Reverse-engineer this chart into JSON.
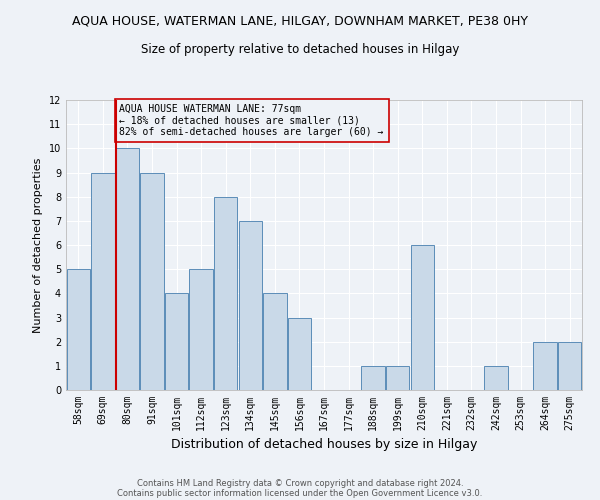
{
  "title": "AQUA HOUSE, WATERMAN LANE, HILGAY, DOWNHAM MARKET, PE38 0HY",
  "subtitle": "Size of property relative to detached houses in Hilgay",
  "xlabel": "Distribution of detached houses by size in Hilgay",
  "ylabel": "Number of detached properties",
  "categories": [
    "58sqm",
    "69sqm",
    "80sqm",
    "91sqm",
    "101sqm",
    "112sqm",
    "123sqm",
    "134sqm",
    "145sqm",
    "156sqm",
    "167sqm",
    "177sqm",
    "188sqm",
    "199sqm",
    "210sqm",
    "221sqm",
    "232sqm",
    "242sqm",
    "253sqm",
    "264sqm",
    "275sqm"
  ],
  "values": [
    5,
    9,
    10,
    9,
    4,
    5,
    8,
    7,
    4,
    3,
    0,
    0,
    1,
    1,
    6,
    0,
    0,
    1,
    0,
    2,
    2
  ],
  "bar_color": "#c9d9e8",
  "bar_edge_color": "#5b8db8",
  "highlight_index": 2,
  "highlight_line_color": "#cc0000",
  "ylim": [
    0,
    12
  ],
  "yticks": [
    0,
    1,
    2,
    3,
    4,
    5,
    6,
    7,
    8,
    9,
    10,
    11,
    12
  ],
  "annotation_text": "AQUA HOUSE WATERMAN LANE: 77sqm\n← 18% of detached houses are smaller (13)\n82% of semi-detached houses are larger (60) →",
  "annotation_box_edge": "#cc0000",
  "footer1": "Contains HM Land Registry data © Crown copyright and database right 2024.",
  "footer2": "Contains public sector information licensed under the Open Government Licence v3.0.",
  "bg_color": "#eef2f7",
  "grid_color": "#ffffff",
  "title_fontsize": 9,
  "subtitle_fontsize": 8.5,
  "tick_fontsize": 7,
  "ylabel_fontsize": 8,
  "xlabel_fontsize": 9,
  "annotation_fontsize": 7,
  "footer_fontsize": 6
}
